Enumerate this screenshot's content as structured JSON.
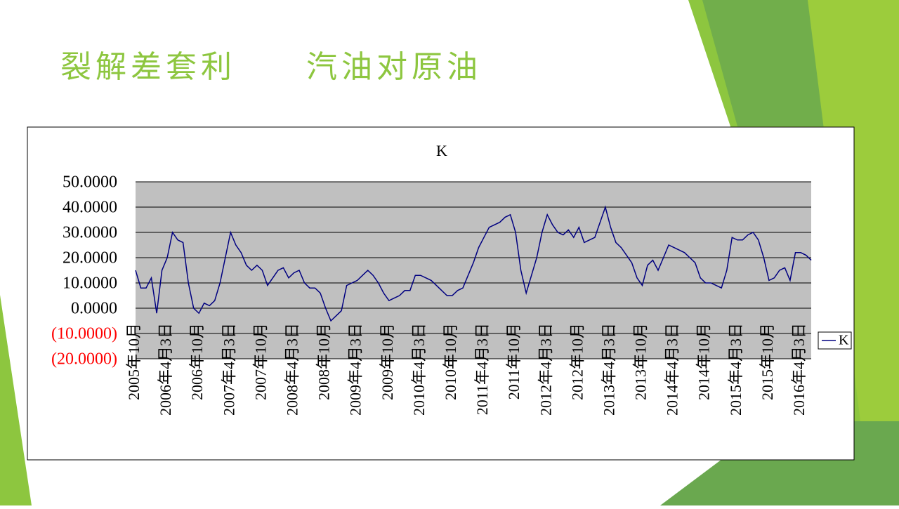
{
  "slide_title": "裂解差套利　　汽油对原油",
  "chart_data": {
    "type": "line",
    "title": "K",
    "categories": [
      "2005年10月",
      null,
      null,
      null,
      null,
      null,
      "2006年4月3日",
      null,
      null,
      null,
      null,
      null,
      "2006年10月",
      null,
      null,
      null,
      null,
      null,
      "2007年4月3日",
      null,
      null,
      null,
      null,
      null,
      "2007年10月",
      null,
      null,
      null,
      null,
      null,
      "2008年4月3日",
      null,
      null,
      null,
      null,
      null,
      "2008年10月",
      null,
      null,
      null,
      null,
      null,
      "2009年4月3日",
      null,
      null,
      null,
      null,
      null,
      "2009年10月",
      null,
      null,
      null,
      null,
      null,
      "2010年4月3日",
      null,
      null,
      null,
      null,
      null,
      "2010年10月",
      null,
      null,
      null,
      null,
      null,
      "2011年4月3日",
      null,
      null,
      null,
      null,
      null,
      "2011年10月",
      null,
      null,
      null,
      null,
      null,
      "2012年4月3日",
      null,
      null,
      null,
      null,
      null,
      "2012年10月",
      null,
      null,
      null,
      null,
      null,
      "2013年4月3日",
      null,
      null,
      null,
      null,
      null,
      "2013年10月",
      null,
      null,
      null,
      null,
      null,
      "2014年4月3日",
      null,
      null,
      null,
      null,
      null,
      "2014年10月",
      null,
      null,
      null,
      null,
      null,
      "2015年4月3日",
      null,
      null,
      null,
      null,
      null,
      "2015年10月",
      null,
      null,
      null,
      null,
      null,
      "2016年4月3日",
      null,
      null
    ],
    "series": [
      {
        "name": "K",
        "color": "#000080",
        "values": [
          15,
          8,
          8,
          12,
          -2,
          15,
          20,
          30,
          27,
          26,
          10,
          0,
          -2,
          2,
          1,
          3,
          10,
          20,
          30,
          25,
          22,
          17,
          15,
          17,
          15,
          9,
          12,
          15,
          16,
          12,
          14,
          15,
          10,
          8,
          8,
          6,
          0,
          -5,
          -3,
          -1,
          9,
          10,
          11,
          13,
          15,
          13,
          10,
          6,
          3,
          4,
          5,
          7,
          7,
          13,
          13,
          12,
          11,
          9,
          7,
          5,
          5,
          7,
          8,
          13,
          18,
          24,
          28,
          32,
          33,
          34,
          36,
          37,
          30,
          15,
          6,
          13,
          20,
          30,
          37,
          33,
          30,
          29,
          31,
          28,
          32,
          26,
          27,
          28,
          34,
          40,
          32,
          26,
          24,
          21,
          18,
          12,
          9,
          17,
          19,
          15,
          20,
          25,
          24,
          23,
          22,
          20,
          18,
          12,
          10,
          10,
          9,
          8,
          15,
          28,
          27,
          27,
          29,
          30,
          27,
          20,
          11,
          12,
          15,
          16,
          11,
          22,
          22,
          21,
          19
        ]
      }
    ],
    "ylim": [
      -20,
      50
    ],
    "yticks": [
      {
        "value": 50,
        "label": "50.0000"
      },
      {
        "value": 40,
        "label": "40.0000"
      },
      {
        "value": 30,
        "label": "30.0000"
      },
      {
        "value": 20,
        "label": "20.0000"
      },
      {
        "value": 10,
        "label": "10.0000"
      },
      {
        "value": 0,
        "label": "0.0000"
      },
      {
        "value": -10,
        "label": "(10.0000)"
      },
      {
        "value": -20,
        "label": "(20.0000)"
      }
    ],
    "negative_tick_color": "#ff0000",
    "grid": true,
    "legend": "right"
  }
}
